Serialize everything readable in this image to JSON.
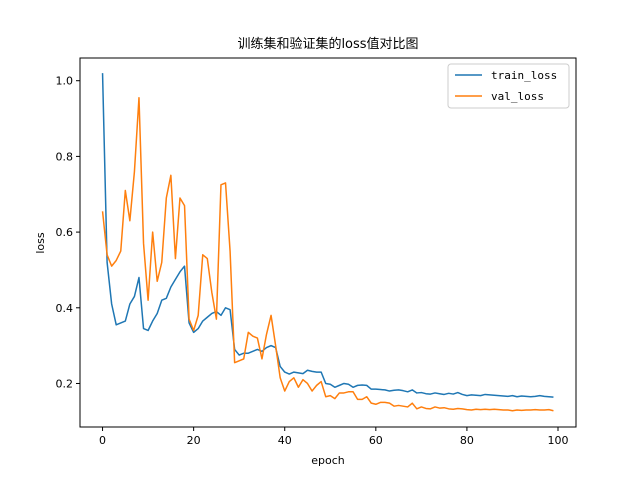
{
  "chart_data": {
    "type": "line",
    "title": "训练集和验证集的loss值对比图",
    "xlabel": "epoch",
    "ylabel": "loss",
    "xlim": [
      -4.95,
      103.95
    ],
    "ylim": [
      0.085,
      1.06
    ],
    "xticks": [
      0,
      20,
      40,
      60,
      80,
      100
    ],
    "yticks": [
      0.2,
      0.4,
      0.6,
      0.8,
      1.0
    ],
    "xtick_labels": [
      "0",
      "20",
      "40",
      "60",
      "80",
      "100"
    ],
    "ytick_labels": [
      "0.2",
      "0.4",
      "0.6",
      "0.8",
      "1.0"
    ],
    "grid": false,
    "legend_position": "top-right",
    "series": [
      {
        "name": "train_loss",
        "color": "#1f77b4",
        "x": [
          0,
          1,
          2,
          3,
          4,
          5,
          6,
          7,
          8,
          9,
          10,
          11,
          12,
          13,
          14,
          15,
          16,
          17,
          18,
          19,
          20,
          21,
          22,
          23,
          24,
          25,
          26,
          27,
          28,
          29,
          30,
          31,
          32,
          33,
          34,
          35,
          36,
          37,
          38,
          39,
          40,
          41,
          42,
          43,
          44,
          45,
          46,
          47,
          48,
          49,
          50,
          51,
          52,
          53,
          54,
          55,
          56,
          57,
          58,
          59,
          60,
          61,
          62,
          63,
          64,
          65,
          66,
          67,
          68,
          69,
          70,
          71,
          72,
          73,
          74,
          75,
          76,
          77,
          78,
          79,
          80,
          81,
          82,
          83,
          84,
          85,
          86,
          87,
          88,
          89,
          90,
          91,
          92,
          93,
          94,
          95,
          96,
          97,
          98,
          99
        ],
        "values": [
          1.02,
          0.52,
          0.41,
          0.355,
          0.36,
          0.365,
          0.41,
          0.43,
          0.48,
          0.345,
          0.34,
          0.365,
          0.385,
          0.42,
          0.425,
          0.455,
          0.475,
          0.495,
          0.51,
          0.36,
          0.335,
          0.345,
          0.365,
          0.375,
          0.385,
          0.39,
          0.38,
          0.4,
          0.395,
          0.29,
          0.275,
          0.28,
          0.28,
          0.285,
          0.29,
          0.285,
          0.295,
          0.3,
          0.295,
          0.245,
          0.23,
          0.225,
          0.23,
          0.228,
          0.226,
          0.235,
          0.232,
          0.23,
          0.23,
          0.2,
          0.198,
          0.19,
          0.195,
          0.2,
          0.198,
          0.19,
          0.195,
          0.196,
          0.195,
          0.185,
          0.185,
          0.184,
          0.183,
          0.18,
          0.182,
          0.183,
          0.181,
          0.178,
          0.183,
          0.175,
          0.176,
          0.173,
          0.172,
          0.175,
          0.173,
          0.171,
          0.174,
          0.172,
          0.176,
          0.171,
          0.168,
          0.17,
          0.169,
          0.168,
          0.171,
          0.17,
          0.169,
          0.168,
          0.167,
          0.166,
          0.168,
          0.165,
          0.167,
          0.166,
          0.165,
          0.166,
          0.168,
          0.166,
          0.165,
          0.164
        ]
      },
      {
        "name": "val_loss",
        "color": "#ff7f0e",
        "x": [
          0,
          1,
          2,
          3,
          4,
          5,
          6,
          7,
          8,
          9,
          10,
          11,
          12,
          13,
          14,
          15,
          16,
          17,
          18,
          19,
          20,
          21,
          22,
          23,
          24,
          25,
          26,
          27,
          28,
          29,
          30,
          31,
          32,
          33,
          34,
          35,
          36,
          37,
          38,
          39,
          40,
          41,
          42,
          43,
          44,
          45,
          46,
          47,
          48,
          49,
          50,
          51,
          52,
          53,
          54,
          55,
          56,
          57,
          58,
          59,
          60,
          61,
          62,
          63,
          64,
          65,
          66,
          67,
          68,
          69,
          70,
          71,
          72,
          73,
          74,
          75,
          76,
          77,
          78,
          79,
          80,
          81,
          82,
          83,
          84,
          85,
          86,
          87,
          88,
          89,
          90,
          91,
          92,
          93,
          94,
          95,
          96,
          97,
          98,
          99
        ],
        "values": [
          0.655,
          0.54,
          0.51,
          0.525,
          0.55,
          0.71,
          0.63,
          0.76,
          0.955,
          0.57,
          0.42,
          0.6,
          0.47,
          0.52,
          0.69,
          0.75,
          0.53,
          0.69,
          0.67,
          0.37,
          0.34,
          0.38,
          0.54,
          0.53,
          0.44,
          0.37,
          0.725,
          0.73,
          0.55,
          0.255,
          0.26,
          0.265,
          0.335,
          0.325,
          0.32,
          0.265,
          0.33,
          0.38,
          0.3,
          0.215,
          0.18,
          0.205,
          0.215,
          0.19,
          0.21,
          0.2,
          0.18,
          0.195,
          0.205,
          0.165,
          0.168,
          0.16,
          0.175,
          0.175,
          0.178,
          0.178,
          0.158,
          0.158,
          0.165,
          0.148,
          0.145,
          0.15,
          0.15,
          0.148,
          0.14,
          0.142,
          0.14,
          0.138,
          0.148,
          0.133,
          0.138,
          0.134,
          0.133,
          0.138,
          0.135,
          0.136,
          0.133,
          0.132,
          0.134,
          0.133,
          0.131,
          0.13,
          0.132,
          0.131,
          0.132,
          0.131,
          0.132,
          0.131,
          0.13,
          0.13,
          0.128,
          0.13,
          0.129,
          0.13,
          0.13,
          0.131,
          0.13,
          0.13,
          0.131,
          0.128
        ]
      }
    ]
  }
}
